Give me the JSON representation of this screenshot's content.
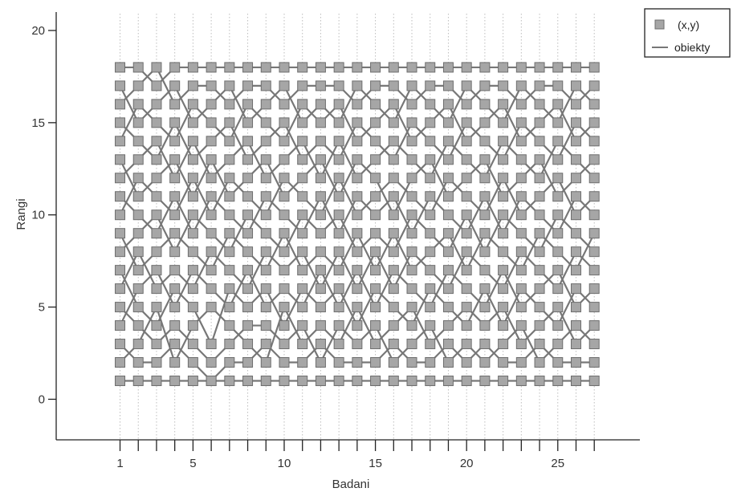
{
  "chart_data": {
    "type": "line",
    "title": "",
    "xlabel": "Badani",
    "ylabel": "Rangi",
    "xlim": [
      -2.5,
      29.5
    ],
    "ylim": [
      -2.2,
      21
    ],
    "x_ticks": [
      1,
      5,
      10,
      15,
      20,
      25
    ],
    "x_minor_ticks": [
      1,
      2,
      3,
      4,
      5,
      6,
      7,
      8,
      9,
      10,
      11,
      12,
      13,
      14,
      15,
      16,
      17,
      18,
      19,
      20,
      21,
      22,
      23,
      24,
      25,
      26,
      27
    ],
    "y_ticks": [
      0,
      5,
      10,
      15,
      20
    ],
    "grid": "vertical-dotted",
    "legend_position": "top-right-outside",
    "colors": {
      "marker_fill": "#a6a6a6",
      "marker_edge": "#6e6e6e",
      "line": "#777777",
      "axis": "#222222",
      "grid": "#bdbdbd"
    },
    "legend": [
      {
        "label": "(x,y)",
        "symbol": "square"
      },
      {
        "label": "obiekty",
        "symbol": "line"
      }
    ],
    "x": [
      1,
      2,
      3,
      4,
      5,
      6,
      7,
      8,
      9,
      10,
      11,
      12,
      13,
      14,
      15,
      16,
      17,
      18,
      19,
      20,
      21,
      22,
      23,
      24,
      25,
      26,
      27
    ],
    "series": [
      {
        "values": [
          1,
          1,
          1,
          1,
          1,
          1,
          1,
          1,
          1,
          1,
          1,
          1,
          1,
          1,
          1,
          1,
          1,
          1,
          1,
          1,
          1,
          1,
          1,
          1,
          1,
          1,
          1
        ]
      },
      {
        "values": [
          3,
          2,
          2,
          3,
          2,
          1,
          2,
          2,
          3,
          2,
          2,
          3,
          2,
          2,
          2,
          3,
          2,
          2,
          3,
          2,
          3,
          2,
          2,
          3,
          2,
          2,
          2
        ]
      },
      {
        "values": [
          5,
          4,
          3,
          4,
          3,
          2,
          3,
          4,
          4,
          3,
          4,
          2,
          4,
          3,
          4,
          2,
          3,
          4,
          2,
          3,
          2,
          3,
          4,
          2,
          3,
          4,
          3
        ]
      },
      {
        "values": [
          2,
          3,
          5,
          2,
          4,
          5,
          4,
          3,
          2,
          5,
          3,
          4,
          3,
          5,
          3,
          4,
          5,
          3,
          4,
          5,
          4,
          5,
          3,
          4,
          5,
          3,
          4
        ]
      },
      {
        "values": [
          7,
          5,
          4,
          6,
          5,
          3,
          6,
          5,
          6,
          4,
          6,
          5,
          6,
          4,
          6,
          5,
          4,
          6,
          5,
          4,
          6,
          4,
          6,
          5,
          4,
          6,
          5
        ]
      },
      {
        "values": [
          4,
          6,
          7,
          5,
          7,
          6,
          5,
          7,
          5,
          6,
          5,
          7,
          5,
          7,
          5,
          7,
          6,
          5,
          7,
          6,
          5,
          7,
          5,
          6,
          7,
          5,
          6
        ]
      },
      {
        "values": [
          6,
          8,
          6,
          7,
          6,
          8,
          7,
          6,
          8,
          7,
          8,
          6,
          8,
          6,
          8,
          6,
          8,
          7,
          6,
          8,
          7,
          6,
          8,
          7,
          6,
          8,
          7
        ]
      },
      {
        "values": [
          9,
          7,
          8,
          9,
          8,
          7,
          9,
          8,
          7,
          9,
          7,
          8,
          7,
          9,
          7,
          9,
          7,
          8,
          9,
          7,
          9,
          8,
          7,
          9,
          8,
          7,
          9
        ]
      },
      {
        "values": [
          8,
          9,
          10,
          8,
          10,
          9,
          8,
          10,
          9,
          8,
          10,
          9,
          10,
          8,
          9,
          8,
          10,
          9,
          8,
          10,
          8,
          10,
          9,
          8,
          10,
          9,
          8
        ]
      },
      {
        "values": [
          11,
          10,
          9,
          11,
          9,
          11,
          10,
          9,
          11,
          10,
          9,
          11,
          9,
          11,
          10,
          11,
          9,
          11,
          10,
          9,
          11,
          9,
          11,
          10,
          9,
          11,
          10
        ]
      },
      {
        "values": [
          10,
          12,
          11,
          10,
          12,
          10,
          12,
          11,
          10,
          12,
          11,
          10,
          12,
          10,
          11,
          12,
          11,
          10,
          12,
          11,
          10,
          12,
          10,
          11,
          12,
          10,
          11
        ]
      },
      {
        "values": [
          13,
          11,
          12,
          13,
          11,
          13,
          11,
          12,
          13,
          11,
          12,
          13,
          11,
          13,
          12,
          10,
          12,
          13,
          11,
          12,
          13,
          11,
          12,
          13,
          11,
          12,
          13
        ]
      },
      {
        "values": [
          12,
          13,
          14,
          12,
          14,
          12,
          13,
          14,
          12,
          13,
          14,
          12,
          14,
          12,
          13,
          14,
          13,
          12,
          14,
          13,
          12,
          14,
          13,
          12,
          14,
          13,
          12
        ]
      },
      {
        "values": [
          15,
          14,
          13,
          15,
          13,
          14,
          15,
          13,
          14,
          15,
          13,
          14,
          13,
          15,
          14,
          13,
          15,
          14,
          13,
          15,
          14,
          13,
          15,
          14,
          13,
          15,
          14
        ]
      },
      {
        "values": [
          14,
          16,
          15,
          14,
          16,
          15,
          14,
          16,
          15,
          14,
          16,
          15,
          16,
          14,
          15,
          16,
          14,
          15,
          16,
          14,
          15,
          16,
          14,
          15,
          16,
          14,
          15
        ]
      },
      {
        "values": [
          17,
          15,
          16,
          17,
          15,
          16,
          17,
          15,
          16,
          17,
          15,
          16,
          15,
          17,
          16,
          15,
          17,
          16,
          15,
          17,
          16,
          15,
          17,
          16,
          15,
          17,
          16
        ]
      },
      {
        "values": [
          16,
          17,
          18,
          16,
          17,
          17,
          16,
          17,
          17,
          16,
          17,
          17,
          17,
          16,
          17,
          17,
          16,
          17,
          17,
          16,
          17,
          17,
          16,
          17,
          17,
          16,
          17
        ]
      },
      {
        "values": [
          18,
          18,
          17,
          18,
          18,
          18,
          18,
          18,
          18,
          18,
          18,
          18,
          18,
          18,
          18,
          18,
          18,
          18,
          18,
          18,
          18,
          18,
          18,
          18,
          18,
          18,
          18
        ]
      }
    ]
  }
}
